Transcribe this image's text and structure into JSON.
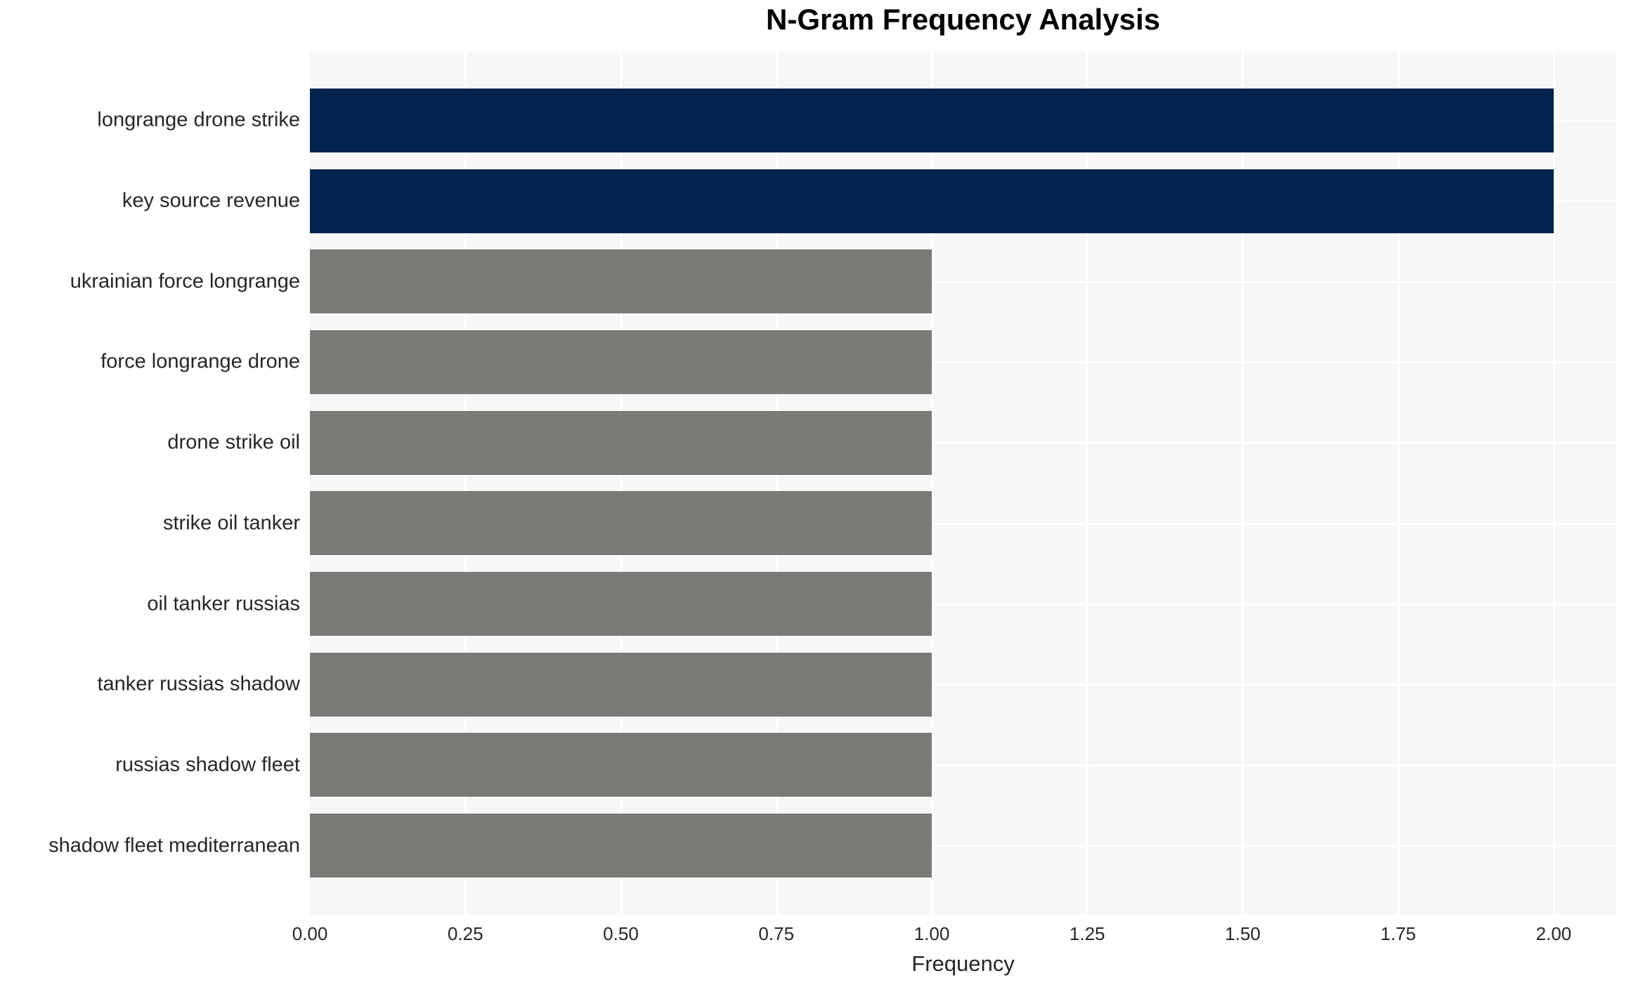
{
  "chart_data": {
    "type": "bar",
    "orientation": "horizontal",
    "title": "N-Gram Frequency Analysis",
    "xlabel": "Frequency",
    "ylabel": "",
    "categories": [
      "longrange drone strike",
      "key source revenue",
      "ukrainian force longrange",
      "force longrange drone",
      "drone strike oil",
      "strike oil tanker",
      "oil tanker russias",
      "tanker russias shadow",
      "russias shadow fleet",
      "shadow fleet mediterranean"
    ],
    "values": [
      2,
      2,
      1,
      1,
      1,
      1,
      1,
      1,
      1,
      1
    ],
    "colors": [
      "#02234D",
      "#02234D",
      "#7B7A76",
      "#7B7A76",
      "#7B7A76",
      "#7B7A76",
      "#7B7A76",
      "#7B7A76",
      "#7B7A76",
      "#7B7A76"
    ],
    "xlim": [
      0,
      2.1006
    ],
    "xticks": [
      0,
      0.25,
      0.5,
      0.75,
      1.0,
      1.25,
      1.5,
      1.75,
      2.0
    ],
    "xtick_labels": [
      "0.00",
      "0.25",
      "0.50",
      "0.75",
      "1.00",
      "1.25",
      "1.50",
      "1.75",
      "2.00"
    ],
    "grid": true,
    "legend": false,
    "plot_background": "#F7F7F7",
    "grid_color": "#FFFFFF",
    "text_color": "#262626",
    "title_color": "#000000"
  }
}
